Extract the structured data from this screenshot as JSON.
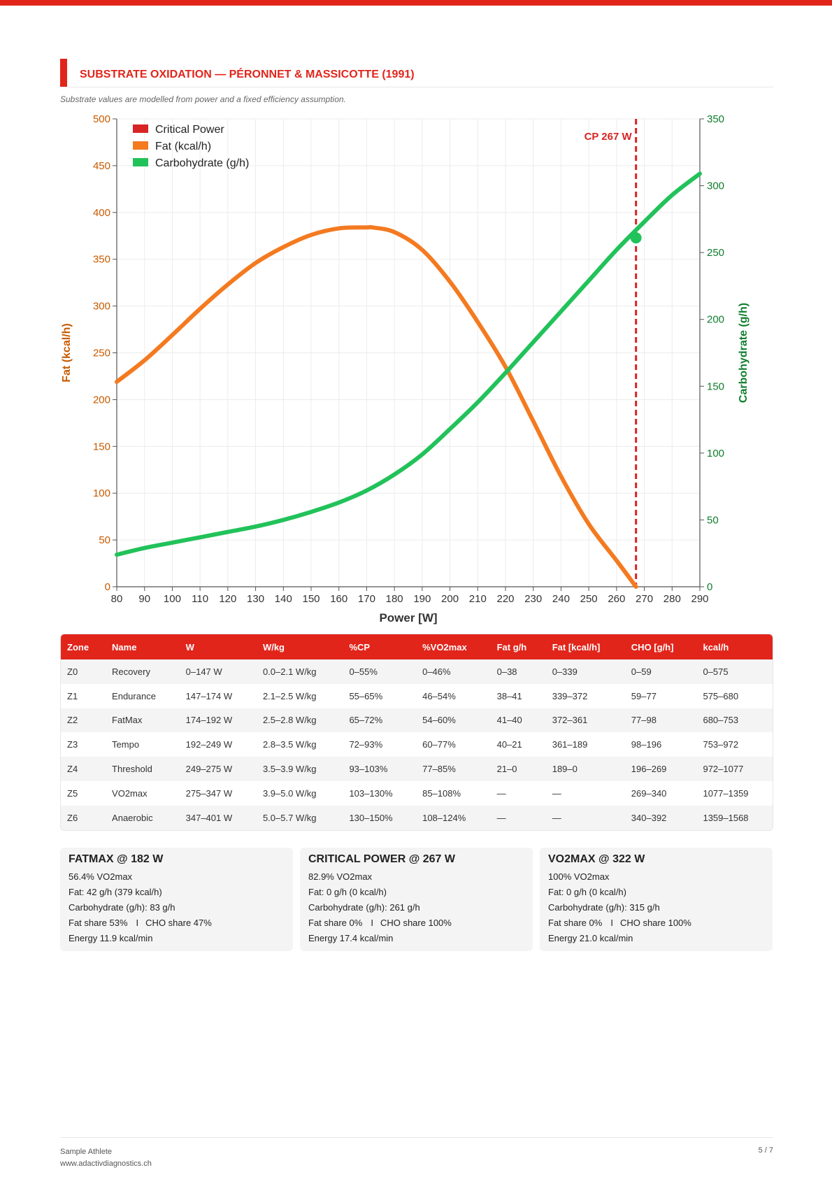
{
  "section": {
    "title": "SUBSTRATE OXIDATION — PÉRONNET & MASSICOTTE (1991)",
    "subtitle": "Substrate values are modelled from power and a fixed efficiency assumption."
  },
  "colors": {
    "accent": "#e1251b",
    "fat": "#f47a20",
    "carbohydrate": "#22c25a",
    "critical_power": "#d82424",
    "axis_left": "#c85a00",
    "axis_right": "#0f7d2c"
  },
  "chart_data": {
    "type": "line",
    "title": "",
    "xlabel": "Power [W]",
    "ylabel": "Fat (kcal/h)",
    "y2label": "Carbohydrate (g/h)",
    "xlim": [
      80,
      290
    ],
    "ylim": [
      0,
      500
    ],
    "y2lim": [
      0,
      350
    ],
    "x_ticks": [
      80,
      90,
      100,
      110,
      120,
      130,
      140,
      150,
      160,
      170,
      180,
      190,
      200,
      210,
      220,
      230,
      240,
      250,
      260,
      270,
      280,
      290
    ],
    "y_ticks": [
      0,
      50,
      100,
      150,
      200,
      250,
      300,
      350,
      400,
      450,
      500
    ],
    "y2_ticks": [
      0,
      50,
      100,
      150,
      200,
      250,
      300,
      350
    ],
    "grid": true,
    "legend_position": "top-left",
    "legend": [
      "Critical Power",
      "Fat (kcal/h)",
      "Carbohydrate (g/h)"
    ],
    "series": [
      {
        "name": "Fat (kcal/h)",
        "axis": "left",
        "x": [
          80,
          90,
          100,
          110,
          120,
          130,
          140,
          150,
          160,
          170,
          172,
          180,
          190,
          200,
          210,
          220,
          230,
          240,
          250,
          260,
          267
        ],
        "y": [
          219,
          242,
          269,
          297,
          323,
          346,
          363,
          376,
          383,
          384,
          384,
          379,
          360,
          326,
          283,
          235,
          177,
          118,
          67,
          28,
          0
        ]
      },
      {
        "name": "Carbohydrate (g/h)",
        "axis": "right",
        "x": [
          80,
          90,
          100,
          110,
          120,
          130,
          140,
          150,
          160,
          170,
          180,
          190,
          200,
          210,
          220,
          230,
          240,
          250,
          260,
          270,
          280,
          290
        ],
        "y": [
          24,
          29,
          33,
          37,
          41,
          45,
          50,
          56,
          63,
          72,
          84,
          99,
          118,
          138,
          160,
          183,
          206,
          229,
          252,
          273,
          293,
          309
        ]
      }
    ],
    "critical_power": {
      "x": 267,
      "label": "CP 267 W",
      "carbohydrate_marker": 261
    }
  },
  "table": {
    "headers": [
      "Zone",
      "Name",
      "W",
      "W/kg",
      "%CP",
      "%VO2max",
      "Fat g/h",
      "Fat [kcal/h]",
      "CHO [g/h]",
      "kcal/h"
    ],
    "rows": [
      [
        "Z0",
        "Recovery",
        "0–147 W",
        "0.0–2.1 W/kg",
        "0–55%",
        "0–46%",
        "0–38",
        "0–339",
        "0–59",
        "0–575"
      ],
      [
        "Z1",
        "Endurance",
        "147–174 W",
        "2.1–2.5 W/kg",
        "55–65%",
        "46–54%",
        "38–41",
        "339–372",
        "59–77",
        "575–680"
      ],
      [
        "Z2",
        "FatMax",
        "174–192 W",
        "2.5–2.8 W/kg",
        "65–72%",
        "54–60%",
        "41–40",
        "372–361",
        "77–98",
        "680–753"
      ],
      [
        "Z3",
        "Tempo",
        "192–249 W",
        "2.8–3.5 W/kg",
        "72–93%",
        "60–77%",
        "40–21",
        "361–189",
        "98–196",
        "753–972"
      ],
      [
        "Z4",
        "Threshold",
        "249–275 W",
        "3.5–3.9 W/kg",
        "93–103%",
        "77–85%",
        "21–0",
        "189–0",
        "196–269",
        "972–1077"
      ],
      [
        "Z5",
        "VO2max",
        "275–347 W",
        "3.9–5.0 W/kg",
        "103–130%",
        "85–108%",
        "—",
        "—",
        "269–340",
        "1077–1359"
      ],
      [
        "Z6",
        "Anaerobic",
        "347–401 W",
        "5.0–5.7 W/kg",
        "130–150%",
        "108–124%",
        "—",
        "—",
        "340–392",
        "1359–1568"
      ]
    ]
  },
  "cards": [
    {
      "title": "FATMAX @ 182 W",
      "vo2": "56.4% VO2max",
      "fat": "Fat: 42 g/h (379 kcal/h)",
      "cho": "Carbohydrate (g/h): 83 g/h",
      "fat_share": "Fat share 53%",
      "cho_share": "CHO share 47%",
      "energy": "Energy 11.9 kcal/min"
    },
    {
      "title": "CRITICAL POWER @ 267 W",
      "vo2": "82.9% VO2max",
      "fat": "Fat: 0 g/h (0 kcal/h)",
      "cho": "Carbohydrate (g/h): 261 g/h",
      "fat_share": "Fat share 0%",
      "cho_share": "CHO share 100%",
      "energy": "Energy 17.4 kcal/min"
    },
    {
      "title": "VO2MAX @ 322 W",
      "vo2": "100% VO2max",
      "fat": "Fat: 0 g/h (0 kcal/h)",
      "cho": "Carbohydrate (g/h): 315 g/h",
      "fat_share": "Fat share 0%",
      "cho_share": "CHO share 100%",
      "energy": "Energy 21.0 kcal/min"
    }
  ],
  "card_separator": "I",
  "footer": {
    "athlete": "Sample Athlete",
    "website": "www.adactivdiagnostics.ch",
    "page": "5 / 7"
  }
}
